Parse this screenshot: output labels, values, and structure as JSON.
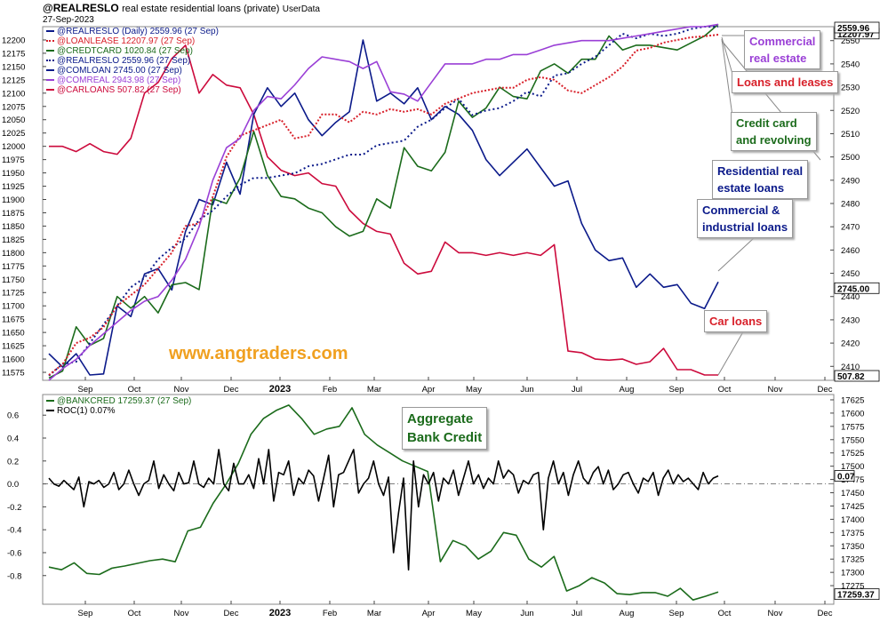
{
  "header": {
    "symbol": "@REALRESLO",
    "description": "real estate residential loans (private)",
    "source": "UserData",
    "date": "27-Sep-2023"
  },
  "watermark": "www.angtraders.com",
  "colors": {
    "realreslo": "#0b1a8a",
    "loanlease": "#d8202a",
    "creditcard": "#1b6b1b",
    "comloan": "#0b1a8a",
    "comreal": "#9a3fd6",
    "carloans": "#cc0a3c",
    "bankcred": "#1b6b1b",
    "roc": "#000000",
    "watermark": "#f0a020"
  },
  "callouts": [
    {
      "id": "commercial-real-estate",
      "text": "Commercial\nreal estate",
      "color": "#9a3fd6"
    },
    {
      "id": "loans-and-leases",
      "text": "Loans and leases",
      "color": "#d8202a"
    },
    {
      "id": "credit-card",
      "text": "Credit card\nand revolving",
      "color": "#1b6b1b"
    },
    {
      "id": "residential",
      "text": "Residential real\nestate loans",
      "color": "#0b1a8a"
    },
    {
      "id": "commercial-industrial",
      "text": "Commercial  &\nindustrial loans",
      "color": "#0b1a8a"
    },
    {
      "id": "car-loans",
      "text": "Car loans",
      "color": "#d8202a"
    },
    {
      "id": "aggregate",
      "text": "Aggregate\nBank Credit",
      "color": "#1b6b1b"
    }
  ],
  "chart_data": [
    {
      "type": "line",
      "panel": "top",
      "x_labels": [
        "Sep",
        "Oct",
        "Nov",
        "Dec",
        "2023",
        "Feb",
        "Mar",
        "Apr",
        "May",
        "Jun",
        "Jul",
        "Aug",
        "Sep",
        "Oct",
        "Nov",
        "Dec"
      ],
      "left_axis": {
        "ticks": [
          11575,
          11600,
          11625,
          11650,
          11675,
          11700,
          11725,
          11750,
          11775,
          11800,
          11825,
          11850,
          11875,
          11900,
          11925,
          11950,
          11975,
          12000,
          12025,
          12050,
          12075,
          12100,
          12125,
          12150,
          12175,
          12200
        ],
        "range": [
          11560,
          12225
        ]
      },
      "right_axis": {
        "ticks": [
          2410,
          2420,
          2430,
          2440,
          2450,
          2460,
          2470,
          2480,
          2490,
          2500,
          2510,
          2520,
          2530,
          2540,
          2550
        ],
        "range": [
          2404,
          2556
        ]
      },
      "last_value_labels": [
        "12207.97",
        "2559.96",
        "2745.00",
        "507.82"
      ],
      "legend": [
        {
          "key": "realreslo",
          "text": "@REALRESLO (Daily) 2559.96 (27 Sep)",
          "style": "solid"
        },
        {
          "key": "loanlease",
          "text": "@LOANLEASE 12207.97 (27 Sep)",
          "style": "dotted"
        },
        {
          "key": "creditcard",
          "text": "@CREDTCARD 1020.84 (27 Sep)",
          "style": "solid"
        },
        {
          "key": "realreslo2",
          "text": "@REALRESLO 2559.96 (27 Sep)",
          "style": "dotted"
        },
        {
          "key": "comloan",
          "text": "@COMLOAN 2745.00 (27 Sep)",
          "style": "solid"
        },
        {
          "key": "comreal",
          "text": "@COMREAL 2943.98 (27 Sep)",
          "style": "solid"
        },
        {
          "key": "carloans",
          "text": "@CARLOANS 507.82 (27 Sep)",
          "style": "solid"
        }
      ],
      "series": [
        {
          "key": "carloans",
          "color": "#cc0a3c",
          "dash": "",
          "values": [
            12000,
            12000,
            11990,
            12005,
            11990,
            11985,
            12015,
            12100,
            12120,
            12165,
            12190,
            12100,
            12135,
            12115,
            12110,
            12060,
            11980,
            11955,
            11945,
            11950,
            11930,
            11925,
            11880,
            11855,
            11840,
            11835,
            11780,
            11760,
            11765,
            11820,
            11800,
            11800,
            11795,
            11800,
            11795,
            11800,
            11795,
            11815,
            11615,
            11612,
            11600,
            11598,
            11600,
            11590,
            11595,
            11620,
            11580,
            11580,
            11570,
            11570
          ]
        },
        {
          "key": "comloan",
          "color": "#0b1a8a",
          "dash": "",
          "values": [
            11610,
            11585,
            11610,
            11570,
            11572,
            11700,
            11680,
            11760,
            11770,
            11730,
            11840,
            11900,
            11890,
            11970,
            11910,
            12060,
            12110,
            12075,
            12100,
            12050,
            12020,
            12045,
            12065,
            12200,
            12085,
            12100,
            12080,
            12110,
            12050,
            12075,
            12060,
            12030,
            11975,
            11945,
            11970,
            11995,
            11960,
            11925,
            11935,
            11855,
            11805,
            11785,
            11790,
            11735,
            11760,
            11735,
            11740,
            11705,
            11695,
            11745
          ]
        },
        {
          "key": "creditcard",
          "color": "#1b6b1b",
          "dash": "",
          "values": [
            2405,
            2408,
            2427,
            2419,
            2422,
            2440,
            2435,
            2440,
            2433,
            2445,
            2446,
            2443,
            2482,
            2480,
            2491,
            2511,
            2492,
            2483,
            2482,
            2478,
            2476,
            2470,
            2466,
            2468,
            2482,
            2478,
            2504,
            2496,
            2494,
            2502,
            2524,
            2517,
            2521,
            2530,
            2526,
            2525,
            2537,
            2540,
            2536,
            2542,
            2542,
            2552,
            2546,
            2548,
            2548,
            2547,
            2546,
            2549,
            2552,
            2557
          ]
        },
        {
          "key": "realreslo2",
          "color": "#0b1a8a",
          "dash": "2,3",
          "values": [
            2406,
            2411,
            2412,
            2420,
            2428,
            2436,
            2444,
            2448,
            2456,
            2461,
            2465,
            2473,
            2477,
            2483,
            2488,
            2491,
            2491,
            2492,
            2493,
            2496,
            2497,
            2499,
            2501,
            2501,
            2505,
            2506,
            2507,
            2513,
            2516,
            2521,
            2525,
            2518,
            2520,
            2521,
            2524,
            2528,
            2526,
            2535,
            2536,
            2540,
            2543,
            2548,
            2553,
            2551,
            2553,
            2552,
            2553,
            2555,
            2556,
            2556
          ]
        },
        {
          "key": "loanlease",
          "color": "#d8202a",
          "dash": "2,2",
          "values": [
            11570,
            11590,
            11630,
            11640,
            11660,
            11700,
            11720,
            11740,
            11770,
            11800,
            11850,
            11855,
            11905,
            11980,
            12020,
            12030,
            12040,
            12050,
            12015,
            12020,
            12060,
            12060,
            12045,
            12065,
            12060,
            12070,
            12065,
            12070,
            12060,
            12080,
            12090,
            12100,
            12105,
            12110,
            12110,
            12125,
            12130,
            12125,
            12105,
            12100,
            12115,
            12130,
            12150,
            12180,
            12185,
            12195,
            12200,
            12205,
            12207,
            12210
          ]
        },
        {
          "key": "comreal",
          "color": "#9a3fd6",
          "dash": "",
          "values": [
            2404,
            2409,
            2413,
            2419,
            2424,
            2429,
            2434,
            2438,
            2440,
            2447,
            2456,
            2470,
            2490,
            2504,
            2508,
            2520,
            2526,
            2525,
            2531,
            2538,
            2543,
            2542,
            2541,
            2538,
            2541,
            2528,
            2527,
            2524,
            2532,
            2540,
            2540,
            2540,
            2542,
            2542,
            2544,
            2544,
            2546,
            2548,
            2549,
            2550,
            2550,
            2550,
            2551,
            2552,
            2553,
            2554,
            2555,
            2556,
            2556,
            2557
          ]
        }
      ]
    },
    {
      "type": "line",
      "panel": "bottom",
      "x_labels": [
        "Sep",
        "Oct",
        "Nov",
        "Dec",
        "2023",
        "Feb",
        "Mar",
        "Apr",
        "May",
        "Jun",
        "Jul",
        "Aug",
        "Sep",
        "Oct",
        "Nov",
        "Dec"
      ],
      "left_axis": {
        "ticks": [
          "0.6",
          "0.4",
          "0.2",
          "0.0",
          "-0.2",
          "-0.4",
          "-0.6",
          "-0.8"
        ],
        "range": [
          -1.05,
          0.78
        ]
      },
      "right_axis": {
        "ticks": [
          17275,
          17300,
          17325,
          17350,
          17375,
          17400,
          17425,
          17450,
          17475,
          17500,
          17525,
          17550,
          17575,
          17600,
          17625
        ],
        "range": [
          17240,
          17635
        ]
      },
      "last_value_labels": [
        "0.07",
        "17259.37"
      ],
      "legend": [
        {
          "key": "bankcred",
          "text": "@BANKCRED 17259.37 (27 Sep)",
          "style": "solid"
        },
        {
          "key": "roc",
          "text": "ROC(1) 0.07%",
          "style": "solid"
        }
      ],
      "series": [
        {
          "key": "bankcred",
          "color": "#1b6b1b",
          "values": [
            17310,
            17305,
            17318,
            17298,
            17296,
            17308,
            17312,
            17317,
            17322,
            17325,
            17320,
            17378,
            17385,
            17430,
            17465,
            17505,
            17560,
            17590,
            17605,
            17615,
            17590,
            17560,
            17570,
            17575,
            17610,
            17560,
            17540,
            17525,
            17510,
            17500,
            17490,
            17320,
            17360,
            17350,
            17325,
            17340,
            17375,
            17370,
            17325,
            17310,
            17330,
            17265,
            17275,
            17290,
            17280,
            17260,
            17258,
            17262,
            17262,
            17255,
            17270,
            17248,
            17255,
            17263
          ]
        },
        {
          "key": "roc",
          "color": "#000000",
          "values": [
            0.05,
            0.0,
            -0.02,
            0.03,
            -0.01,
            -0.05,
            0.06,
            -0.2,
            0.02,
            0.0,
            0.03,
            -0.03,
            0.0,
            0.1,
            -0.05,
            0.0,
            0.12,
            0.0,
            -0.1,
            0.0,
            0.03,
            0.2,
            -0.04,
            0.08,
            0.0,
            -0.06,
            0.1,
            0.0,
            0.01,
            0.2,
            0.0,
            -0.03,
            0.05,
            0.0,
            0.3,
            0.0,
            -0.06,
            0.18,
            0.0,
            0.0,
            0.08,
            -0.04,
            0.22,
            0.0,
            0.3,
            -0.15,
            0.1,
            0.08,
            0.2,
            -0.1,
            0.05,
            0.0,
            0.12,
            0.07,
            -0.15,
            0.05,
            0.25,
            -0.2,
            0.08,
            0.1,
            0.2,
            0.3,
            -0.08,
            0.0,
            0.05,
            0.2,
            0.0,
            -0.1,
            0.06,
            -0.6,
            -0.25,
            0.05,
            -0.75,
            0.2,
            -0.2,
            0.08,
            0.0,
            0.1,
            -0.15,
            0.05,
            0.0,
            0.12,
            -0.1,
            0.05,
            0.2,
            0.0,
            0.08,
            -0.04,
            0.05,
            0.0,
            0.2,
            0.05,
            0.12,
            0.08,
            -0.08,
            0.03,
            0.0,
            0.08,
            0.1,
            -0.4,
            0.05,
            0.2,
            0.0,
            0.1,
            -0.1,
            0.08,
            0.2,
            0.05,
            0.0,
            0.1,
            0.15,
            0.0,
            0.12,
            -0.05,
            0.0,
            0.08,
            0.1,
            0.0,
            -0.08,
            0.05,
            0.02,
            0.1,
            -0.1,
            0.05,
            0.12,
            0.0,
            0.08,
            0.02,
            0.05,
            0.0,
            -0.05,
            0.1,
            0.0,
            0.05,
            0.07
          ]
        }
      ]
    }
  ]
}
